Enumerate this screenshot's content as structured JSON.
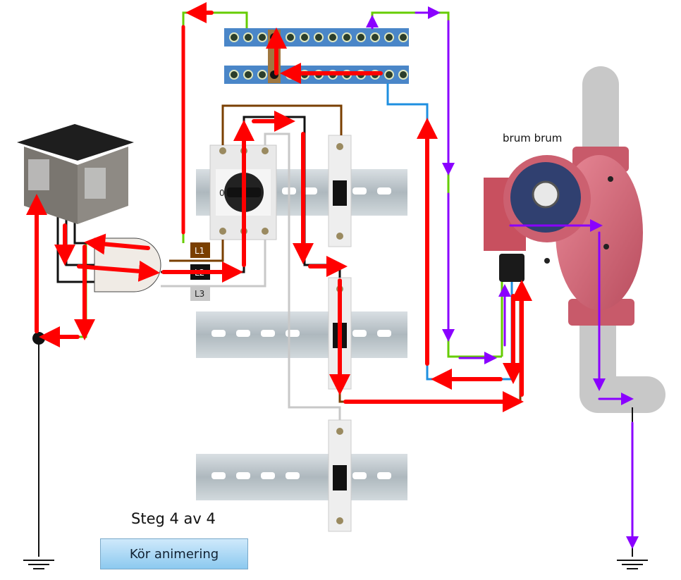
{
  "step": {
    "label": "Steg 4 av 4"
  },
  "controls": {
    "run_button": "Kör animering"
  },
  "pump": {
    "label": "brum brum"
  },
  "switch": {
    "position_label": "0"
  },
  "phases": [
    {
      "label": "L1",
      "color": "#7a3f00"
    },
    {
      "label": "L2",
      "color": "#111111"
    },
    {
      "label": "L3",
      "color": "#c8c8c8"
    }
  ],
  "colors": {
    "current_flow": "#ff0000",
    "return_flow": "#8a00ff",
    "earth_wire": "#66cc00",
    "neutral_wire": "#1e8fe0",
    "phase_brown": "#7a3f00",
    "phase_black": "#111111",
    "phase_grey": "#c8c8c8",
    "pump_body": "#d96a7a",
    "pipe": "#c8c8c8",
    "din_rail": "#c5cdd2"
  },
  "icons": [
    "ground-symbol-icon",
    "arrow-icon",
    "junction-dot-icon"
  ]
}
